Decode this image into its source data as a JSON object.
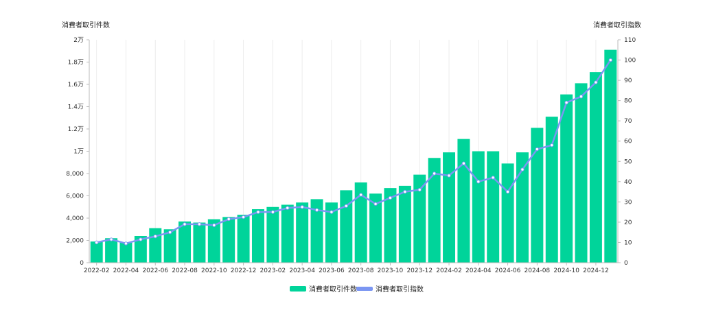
{
  "chart_data": {
    "type": "bar",
    "title": "",
    "y_left_label": "消費者取引件数",
    "y_right_label": "消費者取引指数",
    "y_left_lim": [
      0,
      20000
    ],
    "y_right_lim": [
      0,
      110
    ],
    "y_left_ticks": [
      {
        "value": 0,
        "label": "0"
      },
      {
        "value": 2000,
        "label": "2,000"
      },
      {
        "value": 4000,
        "label": "4,000"
      },
      {
        "value": 6000,
        "label": "6,000"
      },
      {
        "value": 8000,
        "label": "8,000"
      },
      {
        "value": 10000,
        "label": "1万"
      },
      {
        "value": 12000,
        "label": "1.2万"
      },
      {
        "value": 14000,
        "label": "1.4万"
      },
      {
        "value": 16000,
        "label": "1.6万"
      },
      {
        "value": 18000,
        "label": "1.8万"
      },
      {
        "value": 20000,
        "label": "2万"
      }
    ],
    "y_right_ticks": [
      {
        "value": 0,
        "label": "0"
      },
      {
        "value": 10,
        "label": "10"
      },
      {
        "value": 20,
        "label": "20"
      },
      {
        "value": 30,
        "label": "30"
      },
      {
        "value": 40,
        "label": "40"
      },
      {
        "value": 50,
        "label": "50"
      },
      {
        "value": 60,
        "label": "60"
      },
      {
        "value": 70,
        "label": "70"
      },
      {
        "value": 80,
        "label": "80"
      },
      {
        "value": 90,
        "label": "90"
      },
      {
        "value": 100,
        "label": "100"
      },
      {
        "value": 110,
        "label": "110"
      }
    ],
    "x_tick_labels": [
      "2022-02",
      "2022-04",
      "2022-06",
      "2022-08",
      "2022-10",
      "2022-12",
      "2023-02",
      "2023-04",
      "2023-06",
      "2023-08",
      "2023-10",
      "2023-12",
      "2024-02",
      "2024-04",
      "2024-06",
      "2024-08",
      "2024-10",
      "2024-12"
    ],
    "categories": [
      "2022-02",
      "2022-03",
      "2022-04",
      "2022-05",
      "2022-06",
      "2022-07",
      "2022-08",
      "2022-09",
      "2022-10",
      "2022-11",
      "2022-12",
      "2023-01",
      "2023-02",
      "2023-03",
      "2023-04",
      "2023-05",
      "2023-06",
      "2023-07",
      "2023-08",
      "2023-09",
      "2023-10",
      "2023-11",
      "2023-12",
      "2024-01",
      "2024-02",
      "2024-03",
      "2024-04",
      "2024-05",
      "2024-06",
      "2024-07",
      "2024-08",
      "2024-09",
      "2024-10",
      "2024-11",
      "2024-12",
      "2025-01"
    ],
    "series": [
      {
        "name": "消費者取引件数",
        "type": "bar",
        "axis": "left",
        "color": "#00d49a",
        "values": [
          1900,
          2200,
          1800,
          2400,
          3100,
          3000,
          3700,
          3600,
          3900,
          4100,
          4300,
          4800,
          5000,
          5200,
          5400,
          5700,
          5400,
          6500,
          7200,
          6200,
          6700,
          6900,
          7900,
          9400,
          9900,
          11100,
          10000,
          10000,
          8900,
          9900,
          12100,
          13100,
          15100,
          16100,
          17100,
          19100
        ]
      },
      {
        "name": "消費者取引指数",
        "type": "line",
        "axis": "right",
        "color": "#7b96f2",
        "values": [
          10,
          11.5,
          9.5,
          11.5,
          13,
          15,
          19,
          19,
          18.5,
          21.5,
          22.5,
          25,
          25,
          27,
          27.5,
          26,
          25,
          28,
          33.5,
          29,
          32,
          35,
          36,
          44,
          43,
          49,
          40,
          42,
          35,
          46,
          56,
          58,
          79,
          82,
          89,
          100
        ]
      }
    ],
    "legend_placement": "bottom-center",
    "grid": true
  }
}
